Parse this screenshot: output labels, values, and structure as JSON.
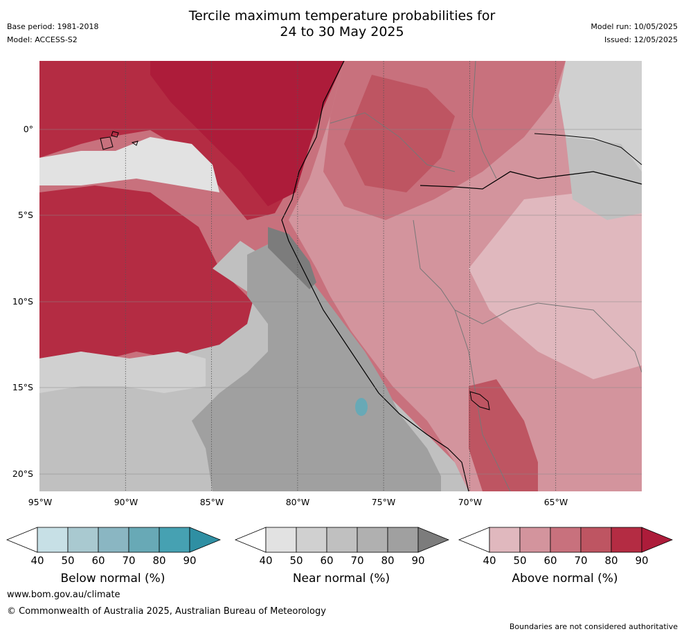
{
  "header": {
    "title_line1": "Tercile maximum temperature probabilities for",
    "title_line2": "24 to 30 May 2025",
    "base_period": "Base period: 1981-2018",
    "model": "Model: ACCESS-S2",
    "model_run": "Model run: 10/05/2025",
    "issued": "Issued: 12/05/2025"
  },
  "map": {
    "lat_labels": [
      "0°",
      "5°S",
      "10°S",
      "15°S",
      "20°S"
    ],
    "lon_labels": [
      "95°W",
      "90°W",
      "85°W",
      "80°W",
      "75°W",
      "70°W",
      "65°W"
    ]
  },
  "colorbars": [
    {
      "title": "Below normal (%)",
      "ticks": [
        "40",
        "50",
        "60",
        "70",
        "80",
        "90"
      ],
      "colors": [
        "#ffffff",
        "#c7e0e6",
        "#a9c9d0",
        "#8ab6c2",
        "#68a9b6",
        "#46a1b2",
        "#2f8fa3"
      ]
    },
    {
      "title": "Near normal (%)",
      "ticks": [
        "40",
        "50",
        "60",
        "70",
        "80",
        "90"
      ],
      "colors": [
        "#ffffff",
        "#e2e2e2",
        "#d0d0d0",
        "#c0c0c0",
        "#b0b0b0",
        "#a0a0a0",
        "#7c7c7c"
      ]
    },
    {
      "title": "Above normal (%)",
      "ticks": [
        "40",
        "50",
        "60",
        "70",
        "80",
        "90"
      ],
      "colors": [
        "#ffffff",
        "#e0b8be",
        "#d3949d",
        "#c8717d",
        "#be5562",
        "#b42c43",
        "#ad1c3a"
      ]
    }
  ],
  "footer": {
    "url": "www.bom.gov.au/climate",
    "copyright": "© Commonwealth of Australia 2025, Australian Bureau of Meteorology",
    "note": "Boundaries are not considered authoritative"
  }
}
